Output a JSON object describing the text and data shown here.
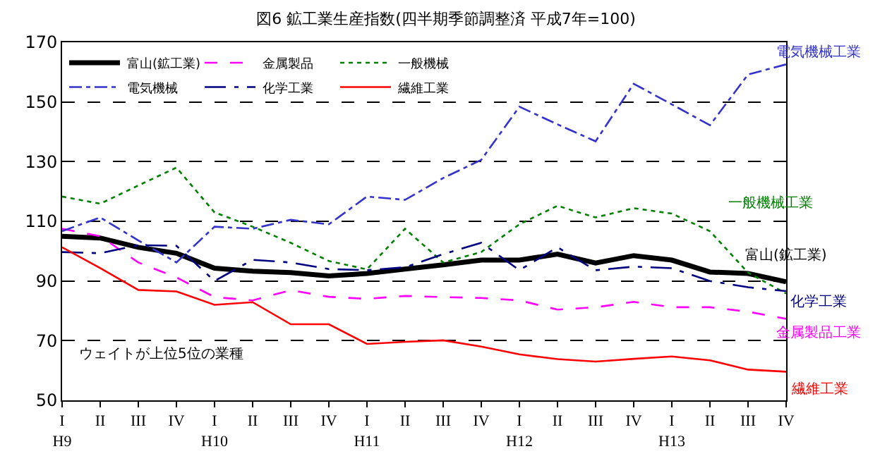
{
  "chart_data": {
    "type": "line",
    "title": "図6 鉱工業生産指数(四半期季節調整済 平成7年=100)",
    "categories": [
      "I\nH9",
      "II",
      "III",
      "IV",
      "I\nH10",
      "II",
      "III",
      "IV",
      "I\nH11",
      "II",
      "III",
      "IV",
      "I\nH12",
      "II",
      "III",
      "IV",
      "I\nH13",
      "II",
      "III",
      "IV"
    ],
    "ylim": [
      50,
      170
    ],
    "yticks": [
      50,
      70,
      90,
      110,
      130,
      150,
      170
    ],
    "grid": "y",
    "legend": "top left",
    "marker": "none",
    "series": [
      {
        "name": "富山(鉱工業)",
        "color": "#000000",
        "line_style": "solid",
        "values": [
          105,
          104.4,
          101.3,
          99.3,
          94.3,
          93.3,
          92.8,
          91.7,
          92.5,
          94,
          95.4,
          97,
          97,
          99,
          96,
          98.5,
          97,
          93,
          92.5,
          89.7
        ]
      },
      {
        "name": "金属製品",
        "color": "#ff00ff",
        "line_style": "dashed",
        "values": [
          107.5,
          105,
          96.2,
          91.2,
          84.6,
          83.5,
          86.9,
          84.7,
          84,
          85,
          84.6,
          84.3,
          83.5,
          80.4,
          81.2,
          83,
          81.2,
          81.2,
          79.7,
          77.3
        ]
      },
      {
        "name": "一般機械",
        "color": "#008000",
        "line_style": "dotted",
        "values": [
          118.3,
          115.9,
          122,
          128,
          113,
          108.2,
          102.8,
          96.7,
          93.9,
          107.5,
          96.2,
          99.7,
          109,
          115.2,
          111.3,
          114.4,
          112.6,
          106.7,
          92.8,
          85.8
        ]
      },
      {
        "name": "電気機械",
        "color": "#3333cc",
        "line_style": "dashdot",
        "values": [
          106.7,
          111.3,
          103.6,
          96.2,
          108.2,
          107.5,
          110.5,
          109,
          118.3,
          117.2,
          124.5,
          130.6,
          148.4,
          142.5,
          136.8,
          156.1,
          149.2,
          142.2,
          159.2,
          162.6
        ]
      },
      {
        "name": "化学工業",
        "color": "#000080",
        "line_style": "longdashdot",
        "values": [
          99.7,
          99.3,
          102,
          101.8,
          90,
          97.1,
          96.2,
          94,
          93.6,
          94.6,
          99,
          102.8,
          93.6,
          101.3,
          93.6,
          94.8,
          94.3,
          90,
          87.9,
          86.6
        ]
      },
      {
        "name": "繊維工業",
        "color": "#ff0000",
        "line_style": "solid",
        "values": [
          101.3,
          94.3,
          87,
          86.5,
          82,
          82.9,
          75.5,
          75.5,
          68.9,
          69.6,
          70.1,
          68,
          65.4,
          63.8,
          63,
          63.9,
          64.7,
          63.4,
          60.3,
          59.6
        ]
      }
    ],
    "annotations": [
      "富山(鉱工業)",
      "金属製品工業",
      "一般機械工業",
      "電気機械工業",
      "化学工業",
      "繊維工業",
      "ウェイトが上位5位の業種"
    ]
  }
}
